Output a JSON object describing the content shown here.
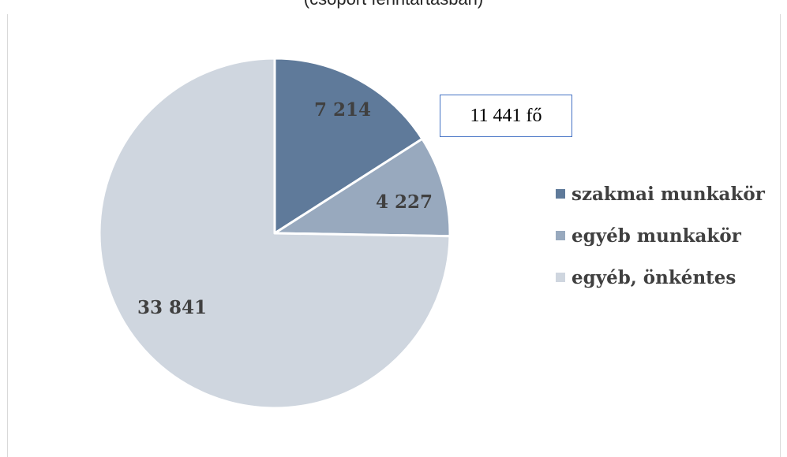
{
  "chart_data": {
    "type": "pie",
    "title": "(csoport fenntartásban)",
    "categories": [
      "szakmai munkakör",
      "egyéb munkakör",
      "egyéb, önkéntes"
    ],
    "values": [
      7214,
      4227,
      33841
    ],
    "data_labels": [
      "7 214",
      "4 227",
      "33 841"
    ],
    "colors": [
      "#5f7a9a",
      "#98a9be",
      "#cfd6df"
    ],
    "label_color": "#404040",
    "start_angle_deg": 0,
    "direction": "clockwise",
    "legend_position": "right",
    "annotation": {
      "text": "11 441 fő",
      "border_color": "#4472c4"
    }
  }
}
